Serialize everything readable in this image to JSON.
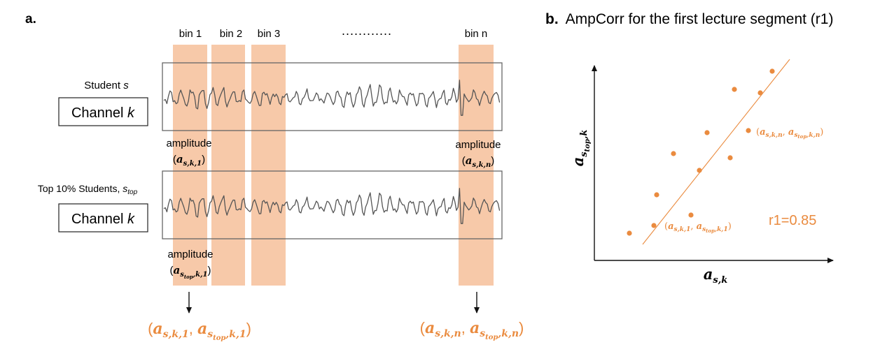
{
  "panel_a": {
    "label": "a.",
    "bins": [
      "bin 1",
      "bin 2",
      "bin 3",
      "bin n"
    ],
    "dots": "............",
    "student": {
      "label_prefix": "Student ",
      "label_var": "s",
      "channel_prefix": "Channel ",
      "channel_var": "k",
      "amp_left": "amplitude",
      "amp_left_sym": {
        "base": "a",
        "sub": "s,k,1"
      },
      "amp_right": "amplitude",
      "amp_right_sym": {
        "base": "a",
        "sub": "s,k,n"
      }
    },
    "top": {
      "label_prefix": "Top 10% Students, ",
      "label_var": "s",
      "label_sub": "top",
      "channel_prefix": "Channel ",
      "channel_var": "k",
      "amp_left": "amplitude",
      "amp_left_sym": {
        "base": "a",
        "sub1": "s",
        "sub2": "top",
        "sub3": ",k,1"
      }
    },
    "pair_left": {
      "open": "(",
      "a1": "a",
      "s1": "s,k,1",
      "comma": ", ",
      "a2": "a",
      "s2a": "s",
      "s2b": "top",
      "s2c": ",k,1",
      "close": ")"
    },
    "pair_right": {
      "open": "(",
      "a1": "a",
      "s1": "s,k,n",
      "comma": ", ",
      "a2": "a",
      "s2a": "s",
      "s2b": "top",
      "s2c": ",k,n",
      "close": ")"
    }
  },
  "panel_b": {
    "label": "b.",
    "title": "AmpCorr for the first lecture segment (r1)",
    "ylabel": {
      "base": "a",
      "sub1": "s",
      "sub2": "top",
      "sub3": ",k"
    },
    "xlabel": {
      "base": "a",
      "sub": "s,k"
    },
    "r_value": "r1=0.85",
    "ann_top": {
      "open": "(",
      "a1": "a",
      "s1": "s,k,n",
      "comma": ", ",
      "a2": "a",
      "s2a": "s",
      "s2b": "top",
      "s2c": ",k,n",
      "close": ")"
    },
    "ann_bottom": {
      "open": "(",
      "a1": "a",
      "s1": "s,k,1",
      "comma": ", ",
      "a2": "a",
      "s2a": "s",
      "s2b": "top",
      "s2c": ",k,1",
      "close": ")"
    }
  },
  "colors": {
    "orange": "#ea8b3f",
    "bin_fill": "#f7c9a9",
    "waveform": "#555555",
    "box": "#666666"
  }
}
